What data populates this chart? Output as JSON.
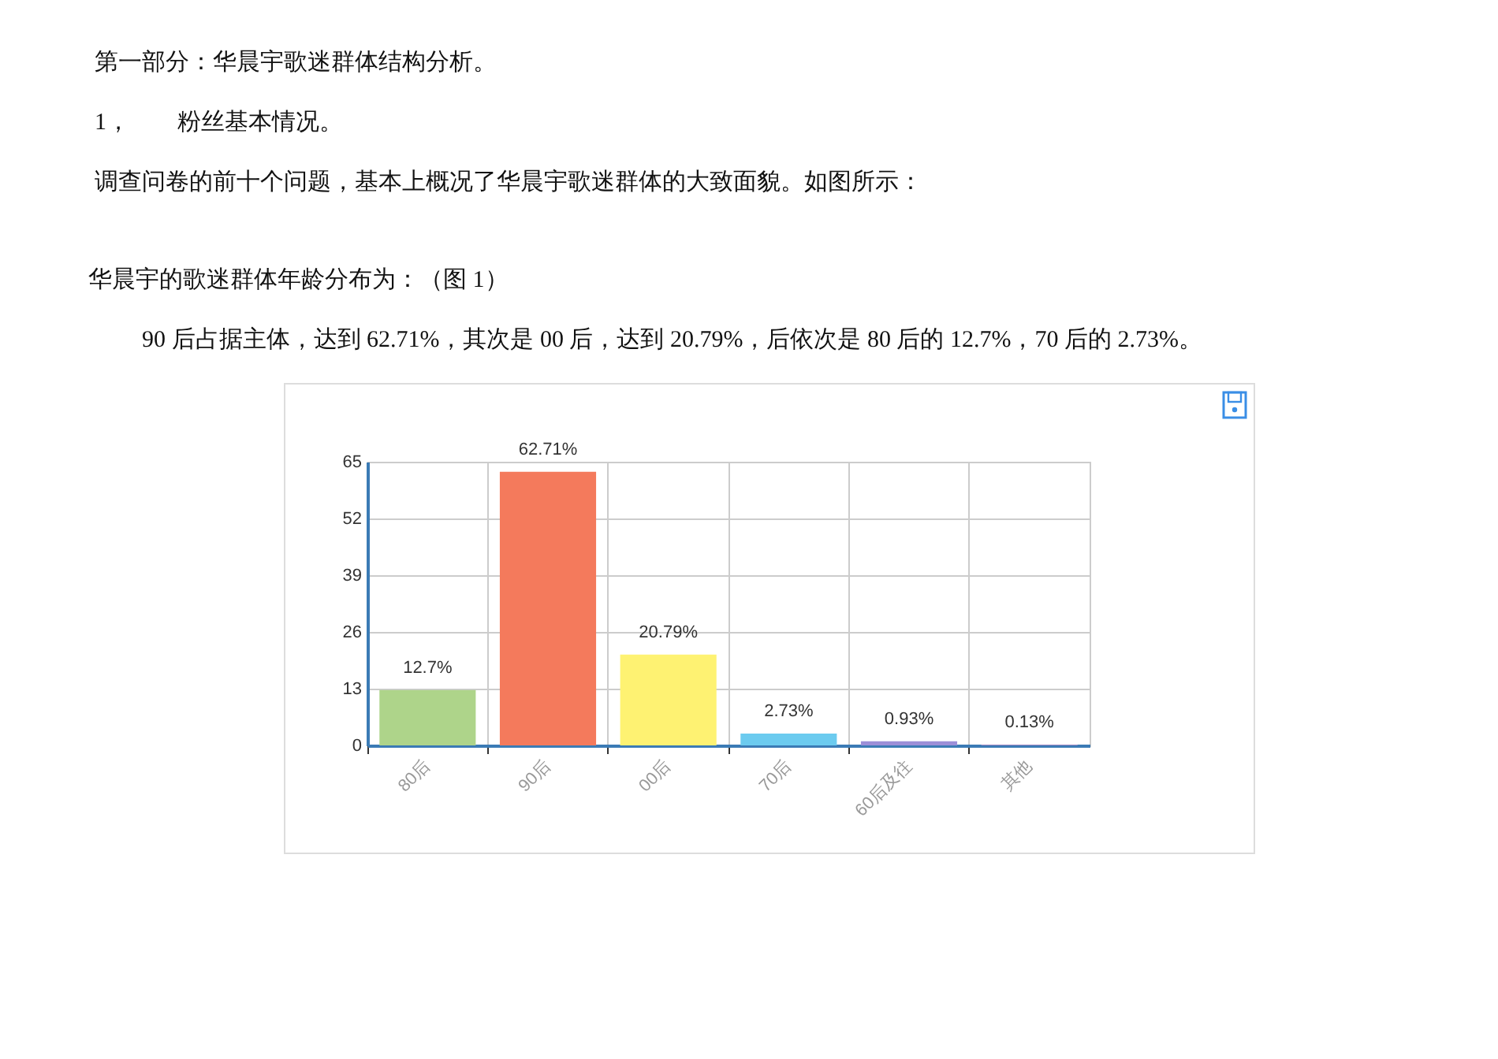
{
  "chart_data": {
    "type": "bar",
    "title": "华晨宇的歌迷群体年龄分布为：（图 1）",
    "subtitle": "90 后占据主体，达到 62.71%，其次是 00 后，达到 20.79%，后依次是 80 后的 12.7%，70 后的 2.73%。",
    "annotations": [
      "第一部分：华晨宇歌迷群体结构分析。",
      "1，　　粉丝基本情况。",
      "调查问卷的前十个问题，基本上概况了华晨宇歌迷群体的大致面貌。如图所示："
    ],
    "categories": [
      "80后",
      "90后",
      "00后",
      "70后",
      "60后及往",
      "其他"
    ],
    "values": [
      12.7,
      62.71,
      20.79,
      2.73,
      0.93,
      0.13
    ],
    "value_labels": [
      "12.7%",
      "62.71%",
      "20.79%",
      "2.73%",
      "0.93%",
      "0.13%"
    ],
    "colors": [
      "#aed48a",
      "#f47a5c",
      "#fef272",
      "#6ccbef",
      "#9c8fd8",
      "#c58fc9"
    ],
    "ylim": [
      0,
      65
    ],
    "yticks": [
      0,
      13,
      26,
      39,
      52,
      65
    ],
    "grid": true,
    "legend": false
  }
}
